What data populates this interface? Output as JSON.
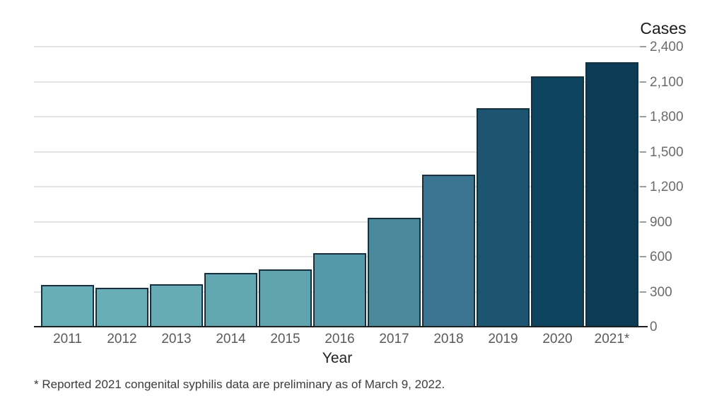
{
  "chart_data": {
    "type": "bar",
    "title": "",
    "ylabel": "Cases",
    "xlabel": "Year",
    "categories": [
      "2011",
      "2012",
      "2013",
      "2014",
      "2015",
      "2016",
      "2017",
      "2018",
      "2019",
      "2020",
      "2021*"
    ],
    "values": [
      360,
      334,
      362,
      462,
      492,
      628,
      935,
      1306,
      1870,
      2148,
      2268
    ],
    "bar_colors": [
      "#68aeb8",
      "#68aeb8",
      "#66abb6",
      "#62a6b1",
      "#60a3ae",
      "#5599a9",
      "#4b8899",
      "#3b7490",
      "#1d5570",
      "#0d455f",
      "#0b3b55"
    ],
    "ylim": [
      0,
      2400
    ],
    "ytick_interval": 300,
    "yticks": [
      0,
      300,
      600,
      900,
      1200,
      1500,
      1800,
      2100,
      2400
    ],
    "ytick_labels": [
      "0",
      "300",
      "600",
      "900",
      "1,200",
      "1,500",
      "1,800",
      "2,100",
      "2,400"
    ],
    "grid": "horizontal",
    "legend": "none",
    "footnote": "* Reported 2021 congenital syphilis data are preliminary as of March 9, 2022."
  },
  "colors": {
    "bar_border": "#16303f",
    "gridline": "#e4e4e4",
    "axis_line": "#1f1f1f",
    "y_tick_label": "#6b6b6b",
    "x_tick_label": "#5a5a5a",
    "title_text": "#1b1b1b"
  }
}
